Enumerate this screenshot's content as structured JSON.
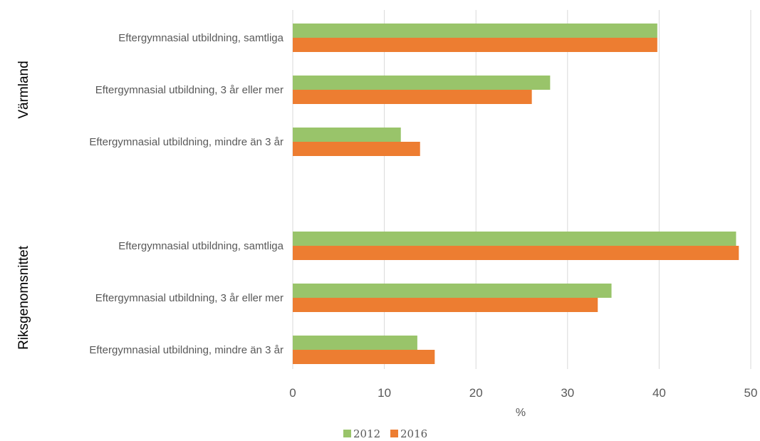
{
  "chart_data": {
    "type": "bar",
    "orientation": "horizontal",
    "xlabel": "%",
    "xlim": [
      0,
      50
    ],
    "x_ticks": [
      "0",
      "10",
      "20",
      "30",
      "40",
      "50"
    ],
    "grid": true,
    "legend_position": "bottom",
    "groups": [
      {
        "name": "Värmland",
        "categories": [
          "Eftergymnasial utbildning, samtliga",
          "Eftergymnasial utbildning, 3 år eller mer",
          "Eftergymnasial utbildning, mindre än 3 år"
        ]
      },
      {
        "name": "Riksgenomsnittet",
        "categories": [
          "Eftergymnasial utbildning, samtliga",
          "Eftergymnasial utbildning, 3 år eller mer",
          "Eftergymnasial utbildning, mindre än 3 år"
        ]
      }
    ],
    "series": [
      {
        "name": "2012",
        "color": "#99c46a",
        "values": [
          39.8,
          28.1,
          11.8,
          48.4,
          34.8,
          13.6
        ]
      },
      {
        "name": "2016",
        "color": "#ed7d31",
        "values": [
          39.8,
          26.1,
          13.9,
          48.7,
          33.3,
          15.5
        ]
      }
    ]
  }
}
